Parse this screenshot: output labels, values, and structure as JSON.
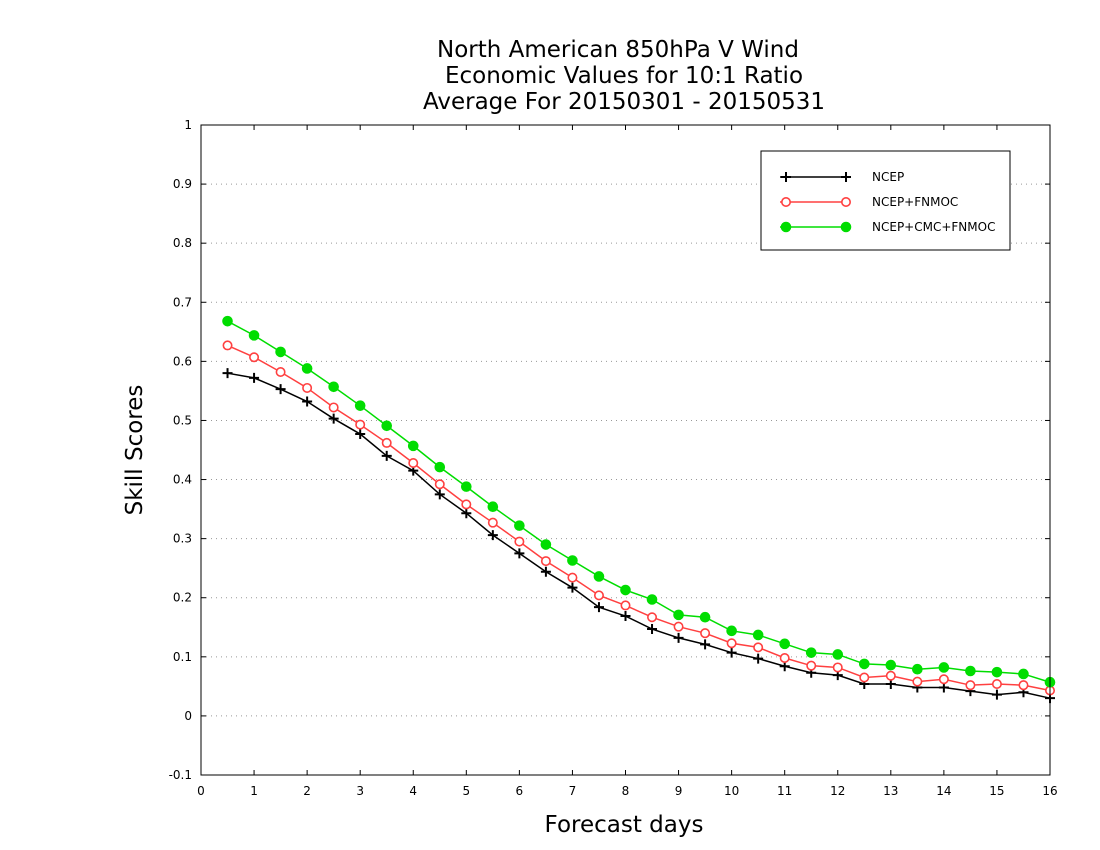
{
  "chart_data": {
    "type": "line",
    "title": [
      "North American 850hPa V Wind",
      "Economic Values for 10:1 Ratio",
      "Average For 20150301 - 20150531"
    ],
    "xlabel": "Forecast days",
    "ylabel": "Skill Scores",
    "xlim": [
      0,
      16
    ],
    "ylim": [
      -0.1,
      1
    ],
    "xticks": [
      0,
      1,
      2,
      3,
      4,
      5,
      6,
      7,
      8,
      9,
      10,
      11,
      12,
      13,
      14,
      15,
      16
    ],
    "yticks": [
      -0.1,
      0,
      0.1,
      0.2,
      0.3,
      0.4,
      0.5,
      0.6,
      0.7,
      0.8,
      0.9,
      1
    ],
    "ytick_labels": [
      "-0.1",
      "0",
      "0.1",
      "0.2",
      "0.3",
      "0.4",
      "0.5",
      "0.6",
      "0.7",
      "0.8",
      "0.9",
      "1"
    ],
    "grid": "horizontal dotted",
    "legend_position": "top-right",
    "x": [
      0.5,
      1.0,
      1.5,
      2.0,
      2.5,
      3.0,
      3.5,
      4.0,
      4.5,
      5.0,
      5.5,
      6.0,
      6.5,
      7.0,
      7.5,
      8.0,
      8.5,
      9.0,
      9.5,
      10.0,
      10.5,
      11.0,
      11.5,
      12.0,
      12.5,
      13.0,
      13.5,
      14.0,
      14.5,
      15.0,
      15.5,
      16.0
    ],
    "series": [
      {
        "name": "NCEP",
        "color": "#000000",
        "marker": "plus",
        "values": [
          0.58,
          0.572,
          0.553,
          0.532,
          0.503,
          0.477,
          0.44,
          0.415,
          0.375,
          0.343,
          0.306,
          0.275,
          0.244,
          0.217,
          0.184,
          0.169,
          0.147,
          0.132,
          0.121,
          0.107,
          0.097,
          0.084,
          0.073,
          0.069,
          0.054,
          0.054,
          0.048,
          0.048,
          0.042,
          0.036,
          0.04,
          0.03
        ]
      },
      {
        "name": "NCEP+FNMOC",
        "color": "#ff4040",
        "marker": "open-circle",
        "values": [
          0.627,
          0.607,
          0.582,
          0.555,
          0.522,
          0.493,
          0.462,
          0.428,
          0.392,
          0.358,
          0.327,
          0.295,
          0.262,
          0.234,
          0.204,
          0.187,
          0.167,
          0.151,
          0.14,
          0.123,
          0.116,
          0.098,
          0.085,
          0.082,
          0.065,
          0.068,
          0.058,
          0.062,
          0.052,
          0.054,
          0.052,
          0.043
        ]
      },
      {
        "name": "NCEP+CMC+FNMOC",
        "color": "#00dd00",
        "marker": "filled-circle",
        "values": [
          0.668,
          0.644,
          0.616,
          0.588,
          0.557,
          0.525,
          0.491,
          0.457,
          0.421,
          0.388,
          0.354,
          0.322,
          0.29,
          0.263,
          0.236,
          0.213,
          0.197,
          0.171,
          0.167,
          0.144,
          0.137,
          0.122,
          0.107,
          0.104,
          0.088,
          0.086,
          0.079,
          0.082,
          0.076,
          0.074,
          0.071,
          0.057
        ]
      }
    ]
  }
}
